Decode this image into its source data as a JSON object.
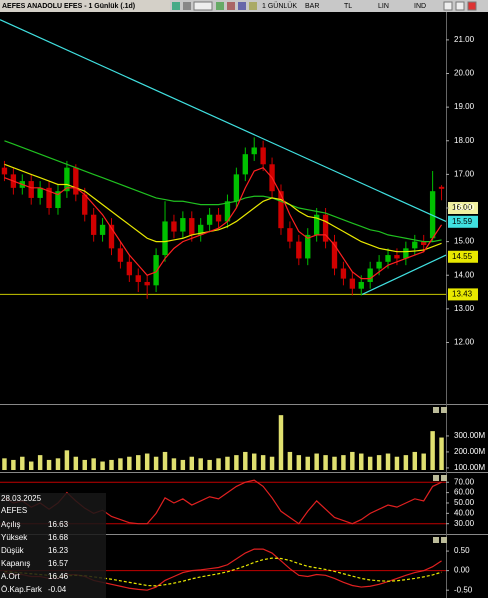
{
  "toolbar": {
    "title": "AEFES ANADOLU EFES - 1 Günlük (.1d)",
    "items": [
      "1 GÜNLÜK",
      "BAR",
      "TL",
      "LIN",
      "IND"
    ]
  },
  "info": {
    "date": "28.03.2025",
    "symbol": "AEFES",
    "rows": [
      [
        "Açılış",
        16.63
      ],
      [
        "Yüksek",
        16.68
      ],
      [
        "Düşük",
        16.23
      ],
      [
        "Kapanış",
        16.57
      ],
      [
        "A.Ort",
        16.46
      ],
      [
        "Ö.Kap.Fark",
        -0.04
      ]
    ]
  },
  "chart_data": [
    {
      "type": "candlestick",
      "up_color": "#00c000",
      "down_color": "#d00000",
      "open": [
        17.2,
        17.0,
        16.6,
        16.8,
        16.3,
        16.6,
        16.0,
        16.5,
        17.2,
        16.4,
        15.8,
        15.2,
        15.5,
        14.8,
        14.4,
        14.0,
        13.8,
        13.7,
        14.6,
        15.6,
        15.3,
        15.7,
        15.2,
        15.5,
        15.8,
        15.6,
        16.2,
        17.0,
        17.6,
        17.8,
        17.3,
        16.5,
        15.4,
        15.0,
        14.5,
        15.2,
        15.8,
        15.0,
        14.2,
        13.9,
        13.6,
        13.8,
        14.2,
        14.4,
        14.6,
        14.5,
        14.8,
        15.0,
        15.1,
        16.63
      ],
      "high": [
        17.4,
        17.2,
        17.0,
        17.0,
        16.8,
        16.8,
        16.7,
        17.4,
        17.3,
        16.6,
        16.0,
        15.7,
        15.7,
        15.0,
        14.6,
        14.2,
        14.0,
        14.8,
        16.2,
        15.8,
        15.9,
        15.9,
        15.7,
        16.0,
        16.0,
        16.4,
        17.2,
        17.8,
        18.1,
        18.0,
        17.5,
        16.7,
        15.6,
        15.2,
        15.4,
        16.0,
        16.0,
        15.2,
        14.4,
        14.1,
        14.0,
        14.4,
        14.6,
        14.8,
        14.8,
        15.0,
        15.2,
        15.2,
        17.1,
        16.68
      ],
      "low": [
        16.8,
        16.4,
        16.4,
        16.1,
        16.1,
        15.8,
        15.8,
        16.3,
        16.2,
        15.6,
        15.0,
        15.0,
        14.6,
        14.2,
        13.8,
        13.5,
        13.3,
        13.5,
        14.4,
        15.1,
        15.1,
        15.0,
        15.0,
        15.3,
        15.4,
        15.4,
        16.0,
        16.8,
        17.4,
        17.1,
        16.3,
        15.2,
        14.8,
        14.3,
        14.3,
        15.0,
        14.8,
        14.0,
        13.7,
        13.4,
        13.4,
        13.6,
        14.0,
        14.2,
        14.3,
        14.3,
        14.6,
        14.7,
        15.0,
        16.23
      ],
      "close": [
        17.0,
        16.6,
        16.8,
        16.3,
        16.6,
        16.0,
        16.5,
        17.2,
        16.4,
        15.8,
        15.2,
        15.5,
        14.8,
        14.4,
        14.0,
        13.8,
        13.7,
        14.6,
        15.6,
        15.3,
        15.7,
        15.2,
        15.5,
        15.8,
        15.6,
        16.2,
        17.0,
        17.6,
        17.8,
        17.3,
        16.5,
        15.4,
        15.0,
        14.5,
        15.2,
        15.8,
        15.0,
        14.2,
        13.9,
        13.6,
        13.8,
        14.2,
        14.4,
        14.6,
        14.5,
        14.8,
        15.0,
        14.9,
        16.5,
        16.57
      ],
      "series": [
        {
          "color": "#20c020",
          "values": [
            18.0,
            17.9,
            17.8,
            17.7,
            17.6,
            17.5,
            17.4,
            17.3,
            17.2,
            17.1,
            17.0,
            16.9,
            16.8,
            16.7,
            16.6,
            16.5,
            16.4,
            16.3,
            16.25,
            16.2,
            16.2,
            16.15,
            16.1,
            16.1,
            16.1,
            16.15,
            16.2,
            16.3,
            16.35,
            16.35,
            16.3,
            16.2,
            16.1,
            16.0,
            15.95,
            15.9,
            15.85,
            15.75,
            15.65,
            15.55,
            15.45,
            15.35,
            15.3,
            15.2,
            15.15,
            15.1,
            15.05,
            15.0,
            15.0,
            15.05
          ]
        },
        {
          "color": "#e8e800",
          "values": [
            17.3,
            17.2,
            17.1,
            17.0,
            16.9,
            16.8,
            16.7,
            16.7,
            16.6,
            16.5,
            16.3,
            16.1,
            15.9,
            15.7,
            15.5,
            15.3,
            15.1,
            15.0,
            15.0,
            15.05,
            15.1,
            15.2,
            15.25,
            15.3,
            15.35,
            15.45,
            15.6,
            15.8,
            16.0,
            16.2,
            16.3,
            16.25,
            16.1,
            15.9,
            15.75,
            15.7,
            15.6,
            15.45,
            15.3,
            15.15,
            15.0,
            14.9,
            14.8,
            14.75,
            14.7,
            14.7,
            14.72,
            14.75,
            14.85,
            14.95
          ]
        },
        {
          "color": "#ff2020",
          "values": [
            16.9,
            16.8,
            16.7,
            16.6,
            16.6,
            16.5,
            16.4,
            16.6,
            16.6,
            16.4,
            16.1,
            15.8,
            15.4,
            15.0,
            14.6,
            14.3,
            14.0,
            14.1,
            14.5,
            14.8,
            15.0,
            15.1,
            15.2,
            15.3,
            15.4,
            15.6,
            16.0,
            16.6,
            17.1,
            17.2,
            16.9,
            16.4,
            15.8,
            15.3,
            15.1,
            15.2,
            15.2,
            14.9,
            14.5,
            14.1,
            13.9,
            13.9,
            14.1,
            14.3,
            14.4,
            14.5,
            14.6,
            14.7,
            15.1,
            15.5
          ]
        }
      ],
      "trendlines": [
        {
          "color": "#40e0e0",
          "start": [
            -0.5,
            21.6
          ],
          "end": [
            49.5,
            15.6
          ]
        },
        {
          "color": "#40e0e0",
          "start": [
            40.1,
            13.43
          ],
          "end": [
            49.5,
            14.6
          ]
        }
      ],
      "hlines": [
        {
          "value": 13.43,
          "color": "#c8c800"
        }
      ],
      "markers": [
        {
          "value": 16,
          "label": "16.00",
          "bg": "#f0f0a0"
        },
        {
          "value": 15.59,
          "label": "15.59",
          "bg": "#40e0e0"
        },
        {
          "value": 14.55,
          "label": "14.55",
          "bg": "#e8e800"
        },
        {
          "value": 13.43,
          "label": "13.43",
          "bg": "#e8e800"
        }
      ],
      "ylim": [
        10.2,
        21.8
      ],
      "yticks": [
        {
          "value": 12,
          "label": "12.00"
        },
        {
          "value": 13,
          "label": "13.00"
        },
        {
          "value": 14,
          "label": "14.00"
        },
        {
          "value": 15,
          "label": "15.00"
        },
        {
          "value": 16,
          "label": "16.00"
        },
        {
          "value": 17,
          "label": "17.00"
        },
        {
          "value": 18,
          "label": "18.00"
        },
        {
          "value": 19,
          "label": "19.00"
        },
        {
          "value": 20,
          "label": "20.00"
        },
        {
          "value": 21,
          "label": "21.00"
        }
      ]
    },
    {
      "type": "bar",
      "color": "#e0e070",
      "values": [
        160,
        150,
        170,
        140,
        180,
        150,
        160,
        210,
        170,
        150,
        160,
        140,
        150,
        160,
        170,
        180,
        190,
        170,
        200,
        160,
        150,
        170,
        160,
        150,
        160,
        170,
        180,
        200,
        190,
        180,
        170,
        430,
        200,
        180,
        170,
        190,
        180,
        170,
        180,
        200,
        190,
        170,
        180,
        190,
        170,
        180,
        200,
        190,
        330,
        290
      ],
      "ylim": [
        87,
        481
      ],
      "yticks": [
        {
          "value": 100,
          "label": "100.00M"
        },
        {
          "value": 200,
          "label": "200.00M"
        },
        {
          "value": 300,
          "label": "300.00M"
        }
      ]
    },
    {
      "type": "line",
      "series": [
        {
          "color": "#e02020",
          "values": [
            55,
            50,
            52,
            46,
            50,
            44,
            50,
            60,
            52,
            45,
            40,
            43,
            37,
            34,
            31,
            30,
            30,
            40,
            55,
            50,
            54,
            48,
            52,
            56,
            54,
            60,
            66,
            70,
            72,
            66,
            55,
            42,
            36,
            30,
            42,
            52,
            44,
            36,
            33,
            30,
            34,
            40,
            44,
            48,
            46,
            50,
            54,
            52,
            66,
            70
          ]
        }
      ],
      "hlines": [
        {
          "value": 70,
          "color": "#c00000"
        },
        {
          "value": 30,
          "color": "#c00000"
        }
      ],
      "ylim": [
        22,
        77
      ],
      "yticks": [
        {
          "value": 30,
          "label": "30.00"
        },
        {
          "value": 40,
          "label": "40.00"
        },
        {
          "value": 50,
          "label": "50.00"
        },
        {
          "value": 60,
          "label": "60.00"
        },
        {
          "value": 70,
          "label": "70.00"
        }
      ]
    },
    {
      "type": "line",
      "series": [
        {
          "color": "#e02020",
          "values": [
            -0.05,
            -0.1,
            -0.1,
            -0.15,
            -0.15,
            -0.2,
            -0.2,
            -0.1,
            -0.1,
            -0.15,
            -0.25,
            -0.3,
            -0.35,
            -0.4,
            -0.45,
            -0.48,
            -0.5,
            -0.42,
            -0.25,
            -0.15,
            -0.05,
            0,
            0.02,
            0.05,
            0.08,
            0.15,
            0.3,
            0.45,
            0.55,
            0.55,
            0.45,
            0.25,
            0.05,
            -0.12,
            -0.15,
            -0.1,
            -0.12,
            -0.2,
            -0.3,
            -0.38,
            -0.42,
            -0.4,
            -0.35,
            -0.28,
            -0.2,
            -0.12,
            -0.05,
            0,
            0.1,
            0.25
          ]
        },
        {
          "color": "#e8e800",
          "dashed": true,
          "values": [
            -0.02,
            -0.04,
            -0.06,
            -0.08,
            -0.1,
            -0.12,
            -0.14,
            -0.13,
            -0.12,
            -0.13,
            -0.16,
            -0.19,
            -0.22,
            -0.26,
            -0.3,
            -0.34,
            -0.38,
            -0.39,
            -0.36,
            -0.32,
            -0.27,
            -0.21,
            -0.16,
            -0.12,
            -0.08,
            -0.03,
            0.04,
            0.12,
            0.21,
            0.28,
            0.32,
            0.31,
            0.26,
            0.18,
            0.11,
            0.07,
            0.03,
            -0.02,
            -0.08,
            -0.14,
            -0.2,
            -0.24,
            -0.26,
            -0.27,
            -0.26,
            -0.23,
            -0.2,
            -0.16,
            -0.11,
            -0.04
          ]
        }
      ],
      "hlines": [
        {
          "value": 0,
          "color": "#c00000"
        }
      ],
      "ylim": [
        -0.7,
        0.86
      ],
      "yticks": [
        {
          "value": -0.5,
          "label": "-0.50"
        },
        {
          "value": 0,
          "label": "0.00"
        },
        {
          "value": 0.5,
          "label": "0.50"
        }
      ]
    }
  ]
}
